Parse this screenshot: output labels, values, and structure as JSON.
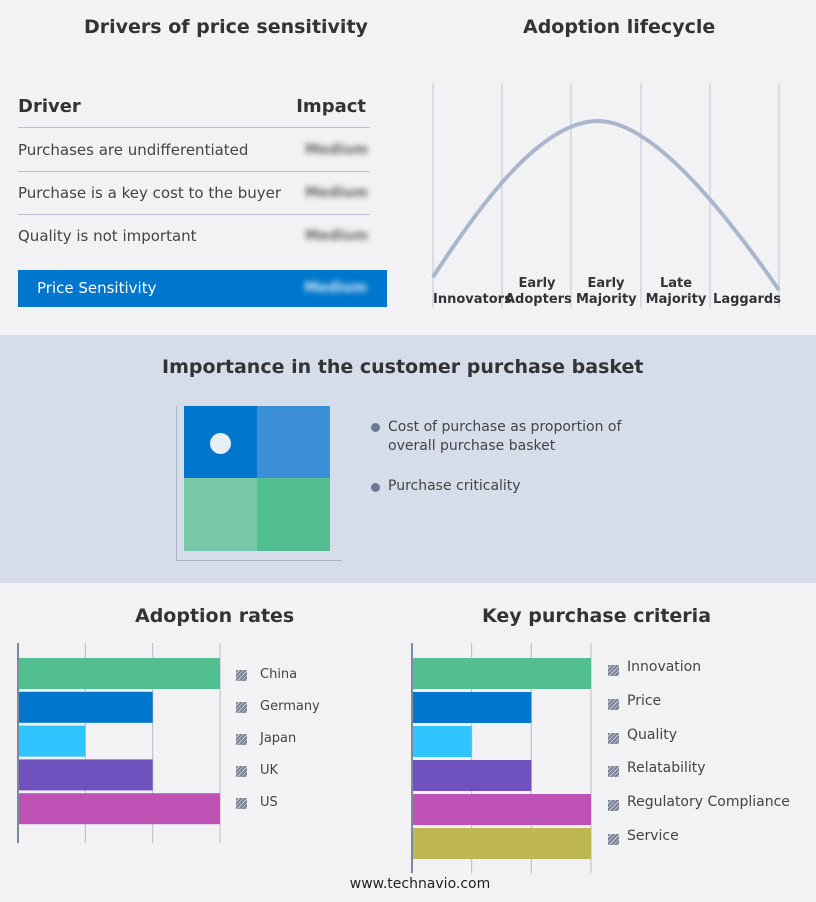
{
  "drivers": {
    "title": "Drivers of price sensitivity",
    "header": {
      "driver": "Driver",
      "impact": "Impact"
    },
    "rows": [
      {
        "driver": "Purchases are undifferentiated",
        "impact": "Medium"
      },
      {
        "driver": "Purchase is a key cost to the buyer",
        "impact": "Medium"
      },
      {
        "driver": "Quality is not important",
        "impact": "Medium"
      }
    ],
    "summary": {
      "label": "Price Sensitivity",
      "impact": "Medium"
    },
    "accent": "#0077cc"
  },
  "lifecycle": {
    "title": "Adoption lifecycle",
    "stages": [
      "Innovators",
      "Early Adopters",
      "Early Majority",
      "Late Majority",
      "Laggards"
    ]
  },
  "basket": {
    "title": "Importance in the customer purchase basket",
    "legend": [
      "Cost of purchase as proportion of overall purchase basket",
      "Purchase criticality"
    ]
  },
  "chart_data": [
    {
      "type": "bar",
      "title": "Adoption rates",
      "orientation": "horizontal",
      "categories": [
        "China",
        "Germany",
        "Japan",
        "UK",
        "US"
      ],
      "values": [
        3,
        2,
        1,
        2,
        3
      ],
      "colors": [
        "#52bf90",
        "#0077cc",
        "#30c5ff",
        "#6f52bd",
        "#bf52b5"
      ],
      "xlim": [
        0,
        3
      ],
      "grid": true,
      "legend": "right"
    },
    {
      "type": "bar",
      "title": "Key purchase criteria",
      "orientation": "horizontal",
      "categories": [
        "Innovation",
        "Price",
        "Quality",
        "Relatability",
        "Regulatory Compliance",
        "Service"
      ],
      "values": [
        3,
        2,
        1,
        2,
        3,
        3
      ],
      "colors": [
        "#52bf90",
        "#0077cc",
        "#30c5ff",
        "#6f52bd",
        "#bf52b5",
        "#bfb852"
      ],
      "xlim": [
        0,
        3
      ],
      "grid": true,
      "legend": "right"
    }
  ],
  "footer": "www.technavio.com"
}
